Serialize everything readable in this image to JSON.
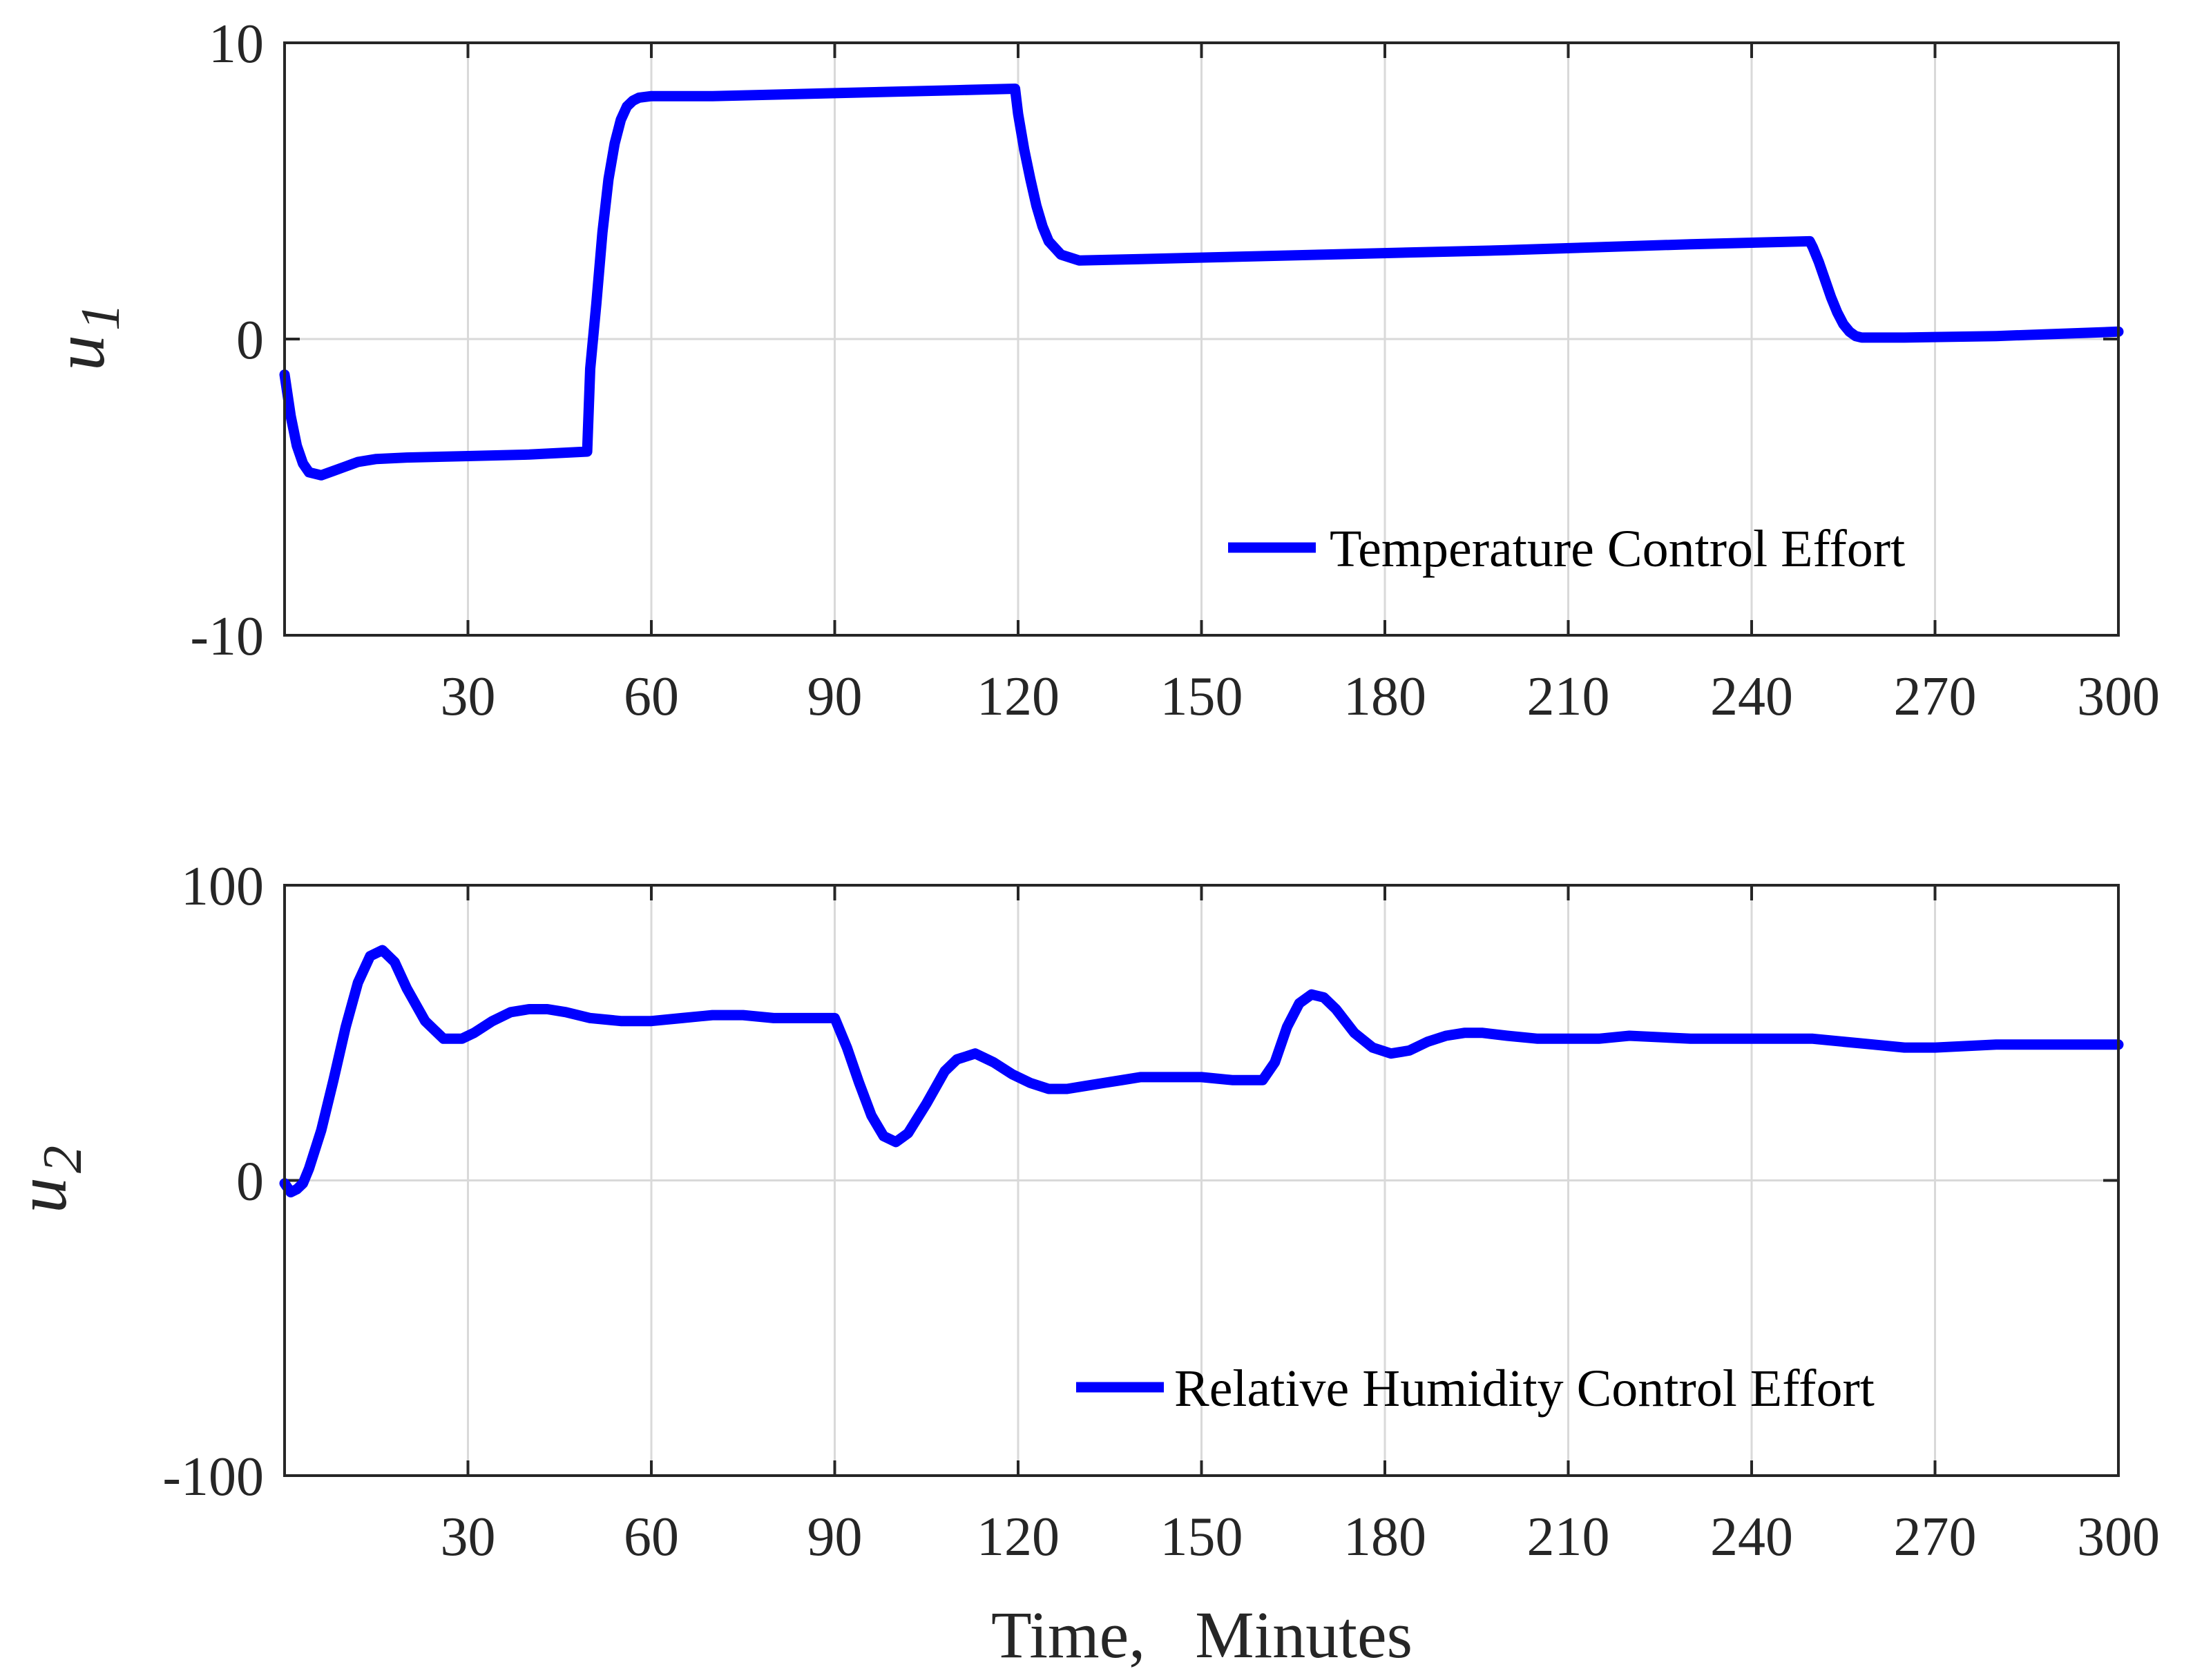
{
  "chart_data": [
    {
      "type": "line",
      "ylabel": "u",
      "ylabel_subscript": "1",
      "xlabel": "",
      "xlim": [
        0,
        300
      ],
      "ylim": [
        -10,
        10
      ],
      "xticks": [
        30,
        60,
        90,
        120,
        150,
        180,
        210,
        240,
        270,
        300
      ],
      "xtick_labels": [
        "30",
        "60",
        "90",
        "120",
        "150",
        "180",
        "210",
        "240",
        "270",
        "300"
      ],
      "yticks": [
        -10,
        0,
        10
      ],
      "ytick_labels": [
        "-10",
        "0",
        "10"
      ],
      "grid": true,
      "legend_position": "bottom-right",
      "series": [
        {
          "name": "Temperature Control Effort",
          "color": "#0000ff",
          "x": [
            0,
            1,
            2,
            3,
            4,
            6,
            8,
            10,
            12,
            15,
            20,
            30,
            40,
            49.5,
            50,
            51,
            52,
            53,
            54,
            55,
            56,
            57,
            58,
            60,
            63,
            70,
            90,
            110,
            119.5,
            120,
            121,
            122,
            123,
            124,
            125,
            127,
            130,
            140,
            170,
            200,
            230,
            249.5,
            250,
            251,
            252,
            253,
            254,
            255,
            256,
            257,
            258,
            260,
            265,
            280,
            300
          ],
          "y": [
            -1.2,
            -2.6,
            -3.6,
            -4.2,
            -4.5,
            -4.6,
            -4.45,
            -4.3,
            -4.15,
            -4.05,
            -4.0,
            -3.95,
            -3.9,
            -3.8,
            -1.0,
            1.2,
            3.6,
            5.4,
            6.6,
            7.4,
            7.85,
            8.05,
            8.15,
            8.2,
            8.2,
            8.2,
            8.3,
            8.4,
            8.45,
            7.6,
            6.4,
            5.4,
            4.5,
            3.8,
            3.3,
            2.85,
            2.65,
            2.7,
            2.85,
            3.0,
            3.2,
            3.3,
            3.1,
            2.6,
            2.0,
            1.4,
            0.9,
            0.5,
            0.25,
            0.1,
            0.05,
            0.05,
            0.05,
            0.1,
            0.25
          ]
        }
      ]
    },
    {
      "type": "line",
      "ylabel": "u",
      "ylabel_subscript": "2",
      "xlabel": "Time,   Minutes",
      "xlim": [
        0,
        300
      ],
      "ylim": [
        -100,
        100
      ],
      "xticks": [
        30,
        60,
        90,
        120,
        150,
        180,
        210,
        240,
        270,
        300
      ],
      "xtick_labels": [
        "30",
        "60",
        "90",
        "120",
        "150",
        "180",
        "210",
        "240",
        "270",
        "300"
      ],
      "yticks": [
        -100,
        0,
        100
      ],
      "ytick_labels": [
        "-100",
        "0",
        "100"
      ],
      "grid": true,
      "legend_position": "bottom-right",
      "series": [
        {
          "name": "Relative Humidity Control Effort",
          "color": "#0000ff",
          "x": [
            0,
            1,
            2,
            3,
            4,
            6,
            8,
            10,
            12,
            14,
            16,
            18,
            20,
            23,
            26,
            29,
            31,
            34,
            37,
            40,
            43,
            46,
            50,
            55,
            60,
            65,
            70,
            75,
            80,
            85,
            90,
            92,
            94,
            96,
            98,
            100,
            102,
            105,
            108,
            110,
            113,
            116,
            119,
            122,
            125,
            128,
            131,
            134,
            137,
            140,
            145,
            150,
            155,
            160,
            162,
            164,
            166,
            168,
            170,
            172,
            175,
            178,
            181,
            184,
            187,
            190,
            193,
            196,
            200,
            205,
            210,
            215,
            220,
            230,
            240,
            250,
            255,
            260,
            265,
            270,
            280,
            290,
            300
          ],
          "y": [
            -1,
            -4,
            -3,
            -1,
            4,
            17,
            34,
            52,
            67,
            76,
            78,
            74,
            65,
            54,
            48,
            48,
            50,
            54,
            57,
            58,
            58,
            57,
            55,
            54,
            54,
            55,
            56,
            56,
            55,
            55,
            55,
            45,
            33,
            22,
            15,
            13,
            16,
            26,
            37,
            41,
            43,
            40,
            36,
            33,
            31,
            31,
            32,
            33,
            34,
            35,
            35,
            35,
            34,
            34,
            40,
            52,
            60,
            63,
            62,
            58,
            50,
            45,
            43,
            44,
            47,
            49,
            50,
            50,
            49,
            48,
            48,
            48,
            49,
            48,
            48,
            48,
            47,
            46,
            45,
            45,
            46,
            46,
            46
          ]
        }
      ]
    }
  ]
}
